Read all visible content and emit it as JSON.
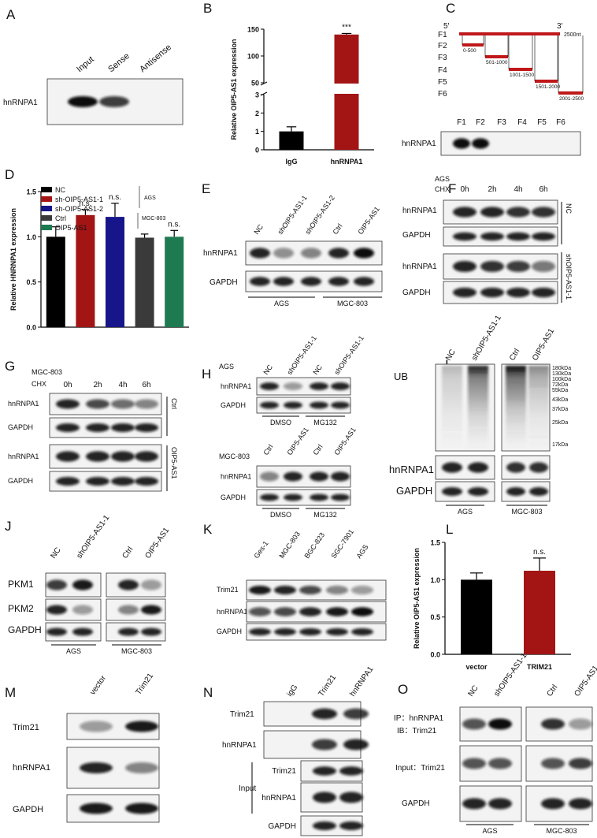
{
  "chart_data": [
    {
      "panel": "B",
      "type": "bar",
      "ylabel": "Relative OIP5-AS1 expression",
      "categories": [
        "IgG",
        "hnRNPA1"
      ],
      "values": [
        1.0,
        140
      ],
      "errors": [
        0.25,
        2
      ],
      "colors": [
        "#000000",
        "#a31515"
      ],
      "annotations": [
        null,
        "***"
      ],
      "ylim": [
        0,
        150
      ],
      "ybreak": [
        3,
        50
      ],
      "yticks": [
        0,
        1,
        2,
        3,
        50,
        100,
        150
      ]
    },
    {
      "panel": "D",
      "type": "bar",
      "ylabel": "Relative HNRNPA1 expression",
      "series": [
        {
          "name": "NC",
          "color": "#000000",
          "values": [
            1.0
          ],
          "errors": [
            0.11
          ]
        },
        {
          "name": "sh-OIP5-AS1-1",
          "color": "#a31515",
          "values": [
            1.24
          ],
          "errors": [
            0.06
          ]
        },
        {
          "name": "sh-OIP5-AS1-2",
          "color": "#16168a",
          "values": [
            1.22
          ],
          "errors": [
            0.15
          ]
        },
        {
          "name": "Ctrl",
          "color": "#3a3a3a",
          "values": [
            0.99
          ],
          "errors": [
            0.04
          ]
        },
        {
          "name": "OIP5-AS1",
          "color": "#1e7a50",
          "values": [
            1.0
          ],
          "errors": [
            0.07
          ]
        }
      ],
      "annotations": [
        null,
        "n.s.",
        "n.s.",
        null,
        "n.s."
      ],
      "legend_groups": [
        "AGS",
        "MGC-803"
      ],
      "ylim": [
        0,
        1.5
      ],
      "yticks": [
        {
          "value": 0,
          "label": "0.0"
        },
        0.5,
        {
          "value": 1,
          "label": "1.0"
        },
        1.5
      ]
    },
    {
      "panel": "L",
      "type": "bar",
      "ylabel": "Relative OIP5-AS1 expression",
      "categories": [
        "vector",
        "TRIM21"
      ],
      "values": [
        1.0,
        1.12
      ],
      "errors": [
        0.09,
        0.17
      ],
      "colors": [
        "#000000",
        "#a31515"
      ],
      "annotations": [
        null,
        "n.s."
      ],
      "ylim": [
        0,
        1.5
      ],
      "yticks": [
        {
          "value": 0,
          "label": "0.0"
        },
        0.5,
        {
          "value": 1,
          "label": "1.0"
        },
        1.5
      ]
    }
  ],
  "blots": {
    "A": {
      "panel": "A",
      "lanes": [
        "Input",
        "Sense",
        "Antisense"
      ],
      "rows": [
        "hnRNPA1"
      ]
    },
    "C": {
      "panel": "C",
      "ends": [
        "5′",
        "3′"
      ],
      "fragments": [
        {
          "name": "F1",
          "label": "2500nt"
        },
        {
          "name": "F2",
          "label": "0-500"
        },
        {
          "name": "F3",
          "label": "501-1000"
        },
        {
          "name": "F4",
          "label": "1001-1500"
        },
        {
          "name": "F5",
          "label": "1501-2000"
        },
        {
          "name": "F6",
          "label": "2001-2500"
        }
      ],
      "lanes": [
        "F1",
        "F2",
        "F3",
        "F4",
        "F5",
        "F6"
      ],
      "rows": [
        "hnRNPA1"
      ]
    },
    "E": {
      "panel": "E",
      "lanes": [
        "NC",
        "shOIP5-AS1-1",
        "shOIP5-AS1-2",
        "Ctrl",
        "OIP5-AS1"
      ],
      "rows": [
        "hnRNPA1",
        "GAPDH"
      ],
      "groups": [
        "AGS",
        "MGC-803"
      ]
    },
    "F": {
      "panel": "F",
      "cell": "AGS",
      "treatment": "CHX",
      "lanes": [
        "0h",
        "2h",
        "4h",
        "6h"
      ],
      "rows": [
        "hnRNPA1",
        "GAPDH",
        "hnRNPA1",
        "GAPDH"
      ],
      "groups": [
        "NC",
        "shOIP5-AS1-1"
      ]
    },
    "G": {
      "panel": "G",
      "cell": "MGC-803",
      "treatment": "CHX",
      "lanes": [
        "0h",
        "2h",
        "4h",
        "6h"
      ],
      "rows": [
        "hnRNPA1",
        "GAPDH",
        "hnRNPA1",
        "GAPDH"
      ],
      "groups": [
        "Ctrl",
        "OIP5-AS1"
      ]
    },
    "H": {
      "panel": "H",
      "blocks": [
        {
          "cell": "AGS",
          "lanes": [
            "NC",
            "shOIP5-AS1-1",
            "NC",
            "shOIP5-AS1-1"
          ],
          "rows": [
            "hnRNPA1",
            "GAPDH"
          ],
          "groups": [
            "DMSO",
            "MG132"
          ]
        },
        {
          "cell": "MGC-803",
          "lanes": [
            "Ctrl",
            "OIP5-AS1",
            "Ctrl",
            "OIP5-AS1"
          ],
          "rows": [
            "hnRNPA1",
            "GAPDH"
          ],
          "groups": [
            "DMSO",
            "MG132"
          ]
        }
      ]
    },
    "I": {
      "panel": "I",
      "lanes": [
        "NC",
        "shOIP5-AS1-1",
        "Ctrl",
        "OIP5-AS1"
      ],
      "rows": [
        "UB",
        "hnRNPA1",
        "GAPDH"
      ],
      "markers": [
        "180kDa",
        "130kDa",
        "100kDa",
        "72kDa",
        "55kDa",
        "43kDa",
        "37kDa",
        "25kDa",
        "17kDa"
      ],
      "groups": [
        "AGS",
        "MGC-803"
      ]
    },
    "J": {
      "panel": "J",
      "lanes": [
        "NC",
        "shOIP5-AS1-1",
        "Ctrl",
        "OIP5-AS1"
      ],
      "rows": [
        "PKM1",
        "PKM2",
        "GAPDH"
      ],
      "groups": [
        "AGS",
        "MGC-803"
      ]
    },
    "K": {
      "panel": "K",
      "lanes": [
        "Ges-1",
        "MGC-803",
        "BGC-823",
        "SGC-7901",
        "AGS"
      ],
      "rows": [
        "Trim21",
        "hnRNPA1",
        "GAPDH"
      ]
    },
    "M": {
      "panel": "M",
      "lanes": [
        "vector",
        "Trim21"
      ],
      "rows": [
        "Trim21",
        "hnRNPA1",
        "GAPDH"
      ]
    },
    "N": {
      "panel": "N",
      "lanes": [
        "igG",
        "Trim21",
        "hnRNPA1"
      ],
      "rows": [
        "Trim21",
        "hnRNPA1"
      ],
      "input": "Input",
      "input_rows": [
        "Trim21",
        "hnRNPA1",
        "GAPDH"
      ]
    },
    "O": {
      "panel": "O",
      "lanes": [
        "NC",
        "shOIP5-AS1-1",
        "Ctrl",
        "OIP5-AS1"
      ],
      "rows": [
        "IP：hnRNPA1",
        "IB：Trim21",
        "Input：Trim21",
        "GAPDH"
      ],
      "groups": [
        "AGS",
        "MGC-803"
      ]
    }
  }
}
